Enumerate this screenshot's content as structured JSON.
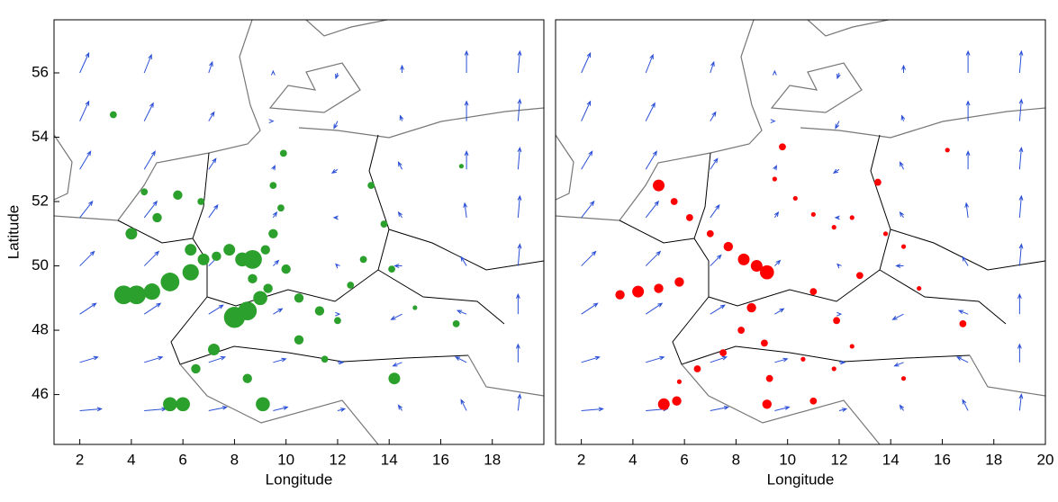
{
  "chart_data": [
    {
      "type": "scatter",
      "xlabel": "Longitude",
      "ylabel": "Latitude",
      "xlim": [
        1,
        20
      ],
      "ylim": [
        44.45,
        57.65
      ],
      "xticks": [
        2,
        4,
        6,
        8,
        10,
        12,
        14,
        16,
        18
      ],
      "yticks": [
        46,
        48,
        50,
        52,
        54,
        56
      ],
      "quiver": {
        "color": "#2a4fd6",
        "x": [
          2,
          4.5,
          7,
          9.5,
          12,
          14.5,
          17,
          19
        ],
        "y": [
          45.5,
          47,
          48.5,
          50,
          51.5,
          53,
          54.5,
          56
        ],
        "u": [
          [
            1.2,
            1.2,
            1.0,
            0.8,
            0.4,
            -0.2,
            -0.3,
            0.1
          ],
          [
            1.0,
            1.0,
            0.9,
            0.7,
            0.3,
            -0.5,
            -0.6,
            0
          ],
          [
            0.9,
            0.9,
            0.8,
            0.5,
            0.1,
            -0.6,
            -0.5,
            0
          ],
          [
            0.8,
            0.8,
            0.6,
            0.3,
            -0.1,
            -0.4,
            -0.3,
            0.1
          ],
          [
            0.7,
            0.7,
            0.5,
            0.2,
            -0.2,
            -0.2,
            -0.1,
            0.1
          ],
          [
            0.6,
            0.6,
            0.4,
            0.1,
            -0.3,
            -0.2,
            0,
            0.1
          ],
          [
            0.5,
            0.5,
            0.3,
            0,
            -0.2,
            -0.1,
            0,
            0.1
          ],
          [
            0.5,
            0.4,
            0.2,
            0,
            -0.1,
            0,
            0,
            0.1
          ]
        ],
        "v": [
          [
            0.1,
            0.1,
            0.2,
            0.2,
            0.1,
            0.3,
            0.6,
            0.9
          ],
          [
            0.3,
            0.3,
            0.3,
            0.2,
            0,
            -0.2,
            0.3,
            1.0
          ],
          [
            0.6,
            0.6,
            0.5,
            0.3,
            0,
            -0.3,
            0.2,
            1.1
          ],
          [
            0.8,
            0.8,
            0.6,
            0.3,
            0.1,
            0,
            0.5,
            1.2
          ],
          [
            0.9,
            0.9,
            0.7,
            0.3,
            0,
            0.3,
            0.8,
            1.2
          ],
          [
            1.0,
            1.0,
            0.6,
            0.2,
            -0.2,
            0.4,
            1.0,
            1.2
          ],
          [
            1.1,
            1.0,
            0.5,
            0,
            -0.4,
            0.3,
            1.1,
            1.2
          ],
          [
            1.1,
            1.0,
            0.6,
            0.1,
            -0.3,
            0.4,
            1.2,
            1.2
          ]
        ]
      },
      "series": [
        {
          "color": "#2ca02c",
          "x": [
            3.3,
            3.7,
            4.2,
            4.8,
            5.5,
            6.3,
            4,
            5,
            4.5,
            5.8,
            6.7,
            6.3,
            6.8,
            7.3,
            7.8,
            8.3,
            8.7,
            9.2,
            9.5,
            9.8,
            9.9,
            9.5,
            10,
            8.7,
            8,
            8.5,
            9,
            9.3,
            10.5,
            11.3,
            12,
            7.2,
            6.5,
            6,
            5.5,
            9.1,
            8.5,
            10.5,
            11.5,
            14.2,
            16.6,
            13.3,
            13.8,
            13,
            14.1,
            12.5,
            15,
            16.8
          ],
          "y": [
            54.7,
            49.1,
            49.1,
            49.2,
            49.5,
            49.8,
            51,
            51.5,
            52.3,
            52.2,
            52,
            50.5,
            50.2,
            50.3,
            50.5,
            50.2,
            50.2,
            50.5,
            51,
            51.8,
            53.5,
            52.5,
            49.9,
            49.6,
            48.4,
            48.6,
            49,
            49.3,
            49,
            48.6,
            48.3,
            47.4,
            46.8,
            45.7,
            45.7,
            45.7,
            46.5,
            47.7,
            47.1,
            46.5,
            48.2,
            52.5,
            51.3,
            50.2,
            49.9,
            49.4,
            48.7,
            53.1
          ],
          "sizes": [
            3,
            8,
            8,
            7,
            8,
            7,
            5,
            4,
            3,
            4,
            3,
            5,
            5,
            4,
            5,
            6,
            8,
            4,
            4,
            3,
            3,
            3,
            4,
            4,
            9,
            8,
            6,
            4,
            4,
            4,
            3,
            5,
            4,
            6,
            6,
            6,
            4,
            4,
            3,
            5,
            3,
            3,
            3,
            3,
            3,
            3,
            2,
            2
          ]
        }
      ]
    },
    {
      "type": "scatter",
      "xlabel": "Longitude",
      "xlim": [
        1,
        20
      ],
      "ylim": [
        44.45,
        57.65
      ],
      "xticks": [
        2,
        4,
        6,
        8,
        10,
        12,
        14,
        16,
        18,
        20
      ],
      "quiver": {
        "color": "#2a4fd6",
        "x": [
          2,
          4.5,
          7,
          9.5,
          12,
          14.5,
          17,
          19
        ],
        "y": [
          45.5,
          47,
          48.5,
          50,
          51.5,
          53,
          54.5,
          56
        ],
        "u": [
          [
            1.2,
            1.2,
            1.0,
            0.8,
            0.4,
            -0.2,
            -0.3,
            0.1
          ],
          [
            1.0,
            1.0,
            0.9,
            0.7,
            0.3,
            -0.5,
            -0.6,
            0
          ],
          [
            0.9,
            0.9,
            0.8,
            0.5,
            0.1,
            -0.6,
            -0.5,
            0
          ],
          [
            0.8,
            0.8,
            0.6,
            0.3,
            -0.1,
            -0.4,
            -0.3,
            0.1
          ],
          [
            0.7,
            0.7,
            0.5,
            0.2,
            -0.2,
            -0.2,
            -0.1,
            0.1
          ],
          [
            0.6,
            0.6,
            0.4,
            0.1,
            -0.3,
            -0.2,
            0,
            0.1
          ],
          [
            0.5,
            0.5,
            0.3,
            0,
            -0.2,
            -0.1,
            0,
            0.1
          ],
          [
            0.5,
            0.4,
            0.2,
            0,
            -0.1,
            0,
            0,
            0.1
          ]
        ],
        "v": [
          [
            0.1,
            0.1,
            0.2,
            0.2,
            0.1,
            0.3,
            0.6,
            0.9
          ],
          [
            0.3,
            0.3,
            0.3,
            0.2,
            0,
            -0.2,
            0.3,
            1.0
          ],
          [
            0.6,
            0.6,
            0.5,
            0.3,
            0,
            -0.3,
            0.2,
            1.1
          ],
          [
            0.8,
            0.8,
            0.6,
            0.3,
            0.1,
            0,
            0.5,
            1.2
          ],
          [
            0.9,
            0.9,
            0.7,
            0.3,
            0,
            0.3,
            0.8,
            1.2
          ],
          [
            1.0,
            1.0,
            0.6,
            0.2,
            -0.2,
            0.4,
            1.0,
            1.2
          ],
          [
            1.1,
            1.0,
            0.5,
            0,
            -0.4,
            0.3,
            1.1,
            1.2
          ],
          [
            1.1,
            1.0,
            0.6,
            0.1,
            -0.3,
            0.4,
            1.2,
            1.2
          ]
        ]
      },
      "series": [
        {
          "color": "#ff0000",
          "x": [
            3.5,
            4.2,
            5,
            5.8,
            5,
            5.6,
            6.2,
            7,
            7.7,
            8.3,
            8.8,
            9.2,
            9.8,
            9.5,
            10.3,
            11,
            11.8,
            12.5,
            13.5,
            13.8,
            14.5,
            16.2,
            15.1,
            16.8,
            12.8,
            11.9,
            11,
            8.6,
            8.2,
            9.1,
            7.5,
            6.5,
            5.8,
            5.2,
            5.7,
            9.2,
            9.3,
            11,
            10.6,
            11.8,
            12.5,
            14.5
          ],
          "y": [
            49.1,
            49.2,
            49.3,
            49.5,
            52.5,
            52,
            51.5,
            51,
            50.6,
            50.2,
            50,
            49.8,
            53.7,
            52.7,
            52.1,
            51.6,
            51.2,
            51.5,
            52.6,
            51,
            50.6,
            53.6,
            49.3,
            48.2,
            49.7,
            48.3,
            49.2,
            48.7,
            48,
            47.6,
            47.3,
            46.8,
            46.4,
            45.7,
            45.8,
            45.7,
            46.5,
            45.8,
            47.1,
            46.8,
            47.5,
            46.5
          ],
          "sizes": [
            4,
            5,
            4,
            4,
            5,
            3,
            3,
            3,
            4,
            5,
            5,
            6,
            3,
            2,
            2,
            2,
            2,
            2,
            3,
            2,
            2,
            2,
            2,
            3,
            3,
            3,
            3,
            4,
            3,
            3,
            3,
            3,
            2,
            5,
            4,
            4,
            3,
            3,
            2,
            2,
            2,
            2
          ]
        }
      ]
    }
  ]
}
